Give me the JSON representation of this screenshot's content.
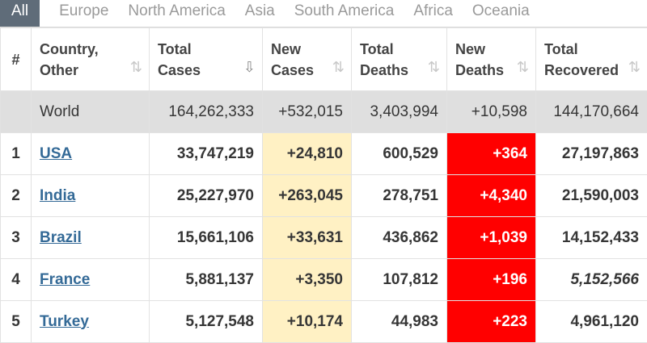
{
  "tabs": [
    "All",
    "Europe",
    "North America",
    "Asia",
    "South America",
    "Africa",
    "Oceania"
  ],
  "headers": {
    "index": "#",
    "country": [
      "Country,",
      "Other"
    ],
    "total_cases": [
      "Total",
      "Cases"
    ],
    "new_cases": [
      "New",
      "Cases"
    ],
    "total_deaths": [
      "Total",
      "Deaths"
    ],
    "new_deaths": [
      "New",
      "Deaths"
    ],
    "total_recovered": [
      "Total",
      "Recovered"
    ]
  },
  "world": {
    "country": "World",
    "total_cases": "164,262,333",
    "new_cases": "+532,015",
    "total_deaths": "3,403,994",
    "new_deaths": "+10,598",
    "total_recovered": "144,170,664"
  },
  "rows": [
    {
      "index": "1",
      "country": "USA",
      "total_cases": "33,747,219",
      "new_cases": "+24,810",
      "total_deaths": "600,529",
      "new_deaths": "+364",
      "total_recovered": "27,197,863"
    },
    {
      "index": "2",
      "country": "India",
      "total_cases": "25,227,970",
      "new_cases": "+263,045",
      "total_deaths": "278,751",
      "new_deaths": "+4,340",
      "total_recovered": "21,590,003"
    },
    {
      "index": "3",
      "country": "Brazil",
      "total_cases": "15,661,106",
      "new_cases": "+33,631",
      "total_deaths": "436,862",
      "new_deaths": "+1,039",
      "total_recovered": "14,152,433"
    },
    {
      "index": "4",
      "country": "France",
      "total_cases": "5,881,137",
      "new_cases": "+3,350",
      "total_deaths": "107,812",
      "new_deaths": "+196",
      "total_recovered": "5,152,566"
    },
    {
      "index": "5",
      "country": "Turkey",
      "total_cases": "5,127,548",
      "new_cases": "+10,174",
      "total_deaths": "44,983",
      "new_deaths": "+223",
      "total_recovered": "4,961,120"
    }
  ],
  "icons": {
    "sort": "sort-icon",
    "sort_active": "sort-desc-icon"
  },
  "colors": {
    "tab_active": "#5f6c79",
    "new_cases_bg": "#fff1c4",
    "new_deaths_bg": "#ff0000",
    "link": "#346a97",
    "world_bg": "#dfdfdf"
  }
}
